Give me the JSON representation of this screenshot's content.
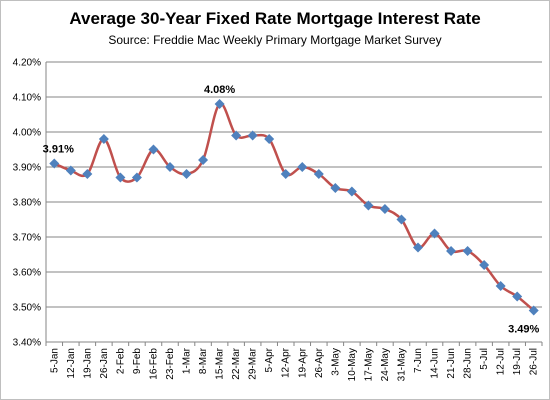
{
  "chart_data": {
    "type": "line",
    "title": "Average  30-Year Fixed Rate Mortgage Interest Rate",
    "subtitle": "Source:  Freddie  Mac Weekly  Primary  Mortgage Market Survey",
    "xlabel": "",
    "ylabel": "",
    "ylim": [
      3.4,
      4.2
    ],
    "yticks": [
      "3.40%",
      "3.50%",
      "3.60%",
      "3.70%",
      "3.80%",
      "3.90%",
      "4.00%",
      "4.10%",
      "4.20%"
    ],
    "grid": true,
    "legend": "none",
    "line_color": "#c0504d",
    "marker_color": "#4f81bd",
    "categories": [
      "5-Jan",
      "12-Jan",
      "19-Jan",
      "26-Jan",
      "2-Feb",
      "9-Feb",
      "16-Feb",
      "23-Feb",
      "1-Mar",
      "8-Mar",
      "15-Mar",
      "22-Mar",
      "29-Mar",
      "5-Apr",
      "12-Apr",
      "19-Apr",
      "26-Apr",
      "3-May",
      "10-May",
      "17-May",
      "24-May",
      "31-May",
      "7-Jun",
      "14-Jun",
      "21-Jun",
      "28-Jun",
      "5-Jul",
      "12-Jul",
      "19-Jul",
      "26-Jul"
    ],
    "values": [
      3.91,
      3.89,
      3.88,
      3.98,
      3.87,
      3.87,
      3.95,
      3.9,
      3.88,
      3.92,
      4.08,
      3.99,
      3.99,
      3.98,
      3.88,
      3.9,
      3.88,
      3.84,
      3.83,
      3.79,
      3.78,
      3.75,
      3.67,
      3.71,
      3.66,
      3.66,
      3.62,
      3.56,
      3.53,
      3.49
    ],
    "data_labels": [
      {
        "index": 0,
        "text": "3.91%"
      },
      {
        "index": 10,
        "text": "4.08%"
      },
      {
        "index": 29,
        "text": "3.49%"
      }
    ]
  }
}
